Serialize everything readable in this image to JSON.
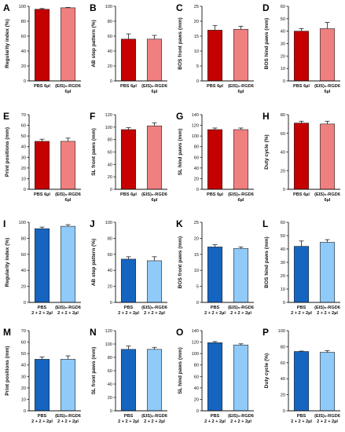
{
  "colors": {
    "red_dark": "#c40000",
    "red_light": "#f08080",
    "blue_dark": "#1565c0",
    "blue_light": "#90caf9",
    "axis": "#111111"
  },
  "chart_data": [
    {
      "panel": "A",
      "type": "bar",
      "categories": [
        [
          "PBS 6µl"
        ],
        [
          "(EIS)₅-RGD6",
          "6µl"
        ]
      ],
      "values": [
        96,
        98
      ],
      "errors": [
        1,
        0.5
      ],
      "ylabel": "Regularity index (%)",
      "ylim": [
        0,
        100
      ],
      "yticks": [
        0,
        20,
        40,
        60,
        80,
        100
      ],
      "colors": [
        "#c40000",
        "#f08080"
      ]
    },
    {
      "panel": "B",
      "type": "bar",
      "categories": [
        [
          "PBS 6µl"
        ],
        [
          "(EIS)₅-RGD6",
          "6µl"
        ]
      ],
      "values": [
        56,
        56
      ],
      "errors": [
        7,
        5
      ],
      "ylabel": "AB step pattern (%)",
      "ylim": [
        0,
        100
      ],
      "yticks": [
        0,
        20,
        40,
        60,
        80,
        100
      ],
      "colors": [
        "#c40000",
        "#f08080"
      ]
    },
    {
      "panel": "C",
      "type": "bar",
      "categories": [
        [
          "PBS 6µl"
        ],
        [
          "(EIS)₅-RGD6",
          "6µl"
        ]
      ],
      "values": [
        17,
        17.3
      ],
      "errors": [
        1.5,
        1
      ],
      "ylabel": "BOS front paws (mm)",
      "ylim": [
        0,
        25
      ],
      "yticks": [
        0,
        5,
        10,
        15,
        20,
        25
      ],
      "colors": [
        "#c40000",
        "#f08080"
      ]
    },
    {
      "panel": "D",
      "type": "bar",
      "categories": [
        [
          "PBS 6µl"
        ],
        [
          "(EIS)₅-RGD6",
          "6µl"
        ]
      ],
      "values": [
        40,
        42
      ],
      "errors": [
        2,
        5
      ],
      "ylabel": "BOS hind paws (mm)",
      "ylim": [
        0,
        60
      ],
      "yticks": [
        0,
        10,
        20,
        30,
        40,
        50,
        60
      ],
      "colors": [
        "#c40000",
        "#f08080"
      ]
    },
    {
      "panel": "E",
      "type": "bar",
      "categories": [
        [
          "PBS 6µl"
        ],
        [
          "(EIS)₅-RGD6",
          "6µl"
        ]
      ],
      "values": [
        45,
        45
      ],
      "errors": [
        2,
        3
      ],
      "ylabel": "Print positions (mm)",
      "ylim": [
        0,
        70
      ],
      "yticks": [
        0,
        10,
        20,
        30,
        40,
        50,
        60,
        70
      ],
      "colors": [
        "#c40000",
        "#f08080"
      ]
    },
    {
      "panel": "F",
      "type": "bar",
      "categories": [
        [
          "PBS 6µl"
        ],
        [
          "(EIS)₅-RGD6",
          "6µl"
        ]
      ],
      "values": [
        96,
        102
      ],
      "errors": [
        3,
        5
      ],
      "ylabel": "SL front paws (mm)",
      "ylim": [
        0,
        120
      ],
      "yticks": [
        0,
        20,
        40,
        60,
        80,
        100,
        120
      ],
      "colors": [
        "#c40000",
        "#f08080"
      ]
    },
    {
      "panel": "G",
      "type": "bar",
      "categories": [
        [
          "PBS 6µl"
        ],
        [
          "(EIS)₅-RGD6",
          "6µl"
        ]
      ],
      "values": [
        112,
        112
      ],
      "errors": [
        3,
        3
      ],
      "ylabel": "SL hind paws (mm)",
      "ylim": [
        0,
        140
      ],
      "yticks": [
        0,
        20,
        40,
        60,
        80,
        100,
        120,
        140
      ],
      "colors": [
        "#c40000",
        "#f08080"
      ]
    },
    {
      "panel": "H",
      "type": "bar",
      "categories": [
        [
          "PBS 6µl"
        ],
        [
          "(EIS)₅-RGD6",
          "6µl"
        ]
      ],
      "values": [
        71,
        70
      ],
      "errors": [
        2,
        3
      ],
      "ylabel": "Duty cycle (%)",
      "ylim": [
        0,
        80
      ],
      "yticks": [
        0,
        20,
        40,
        60,
        80
      ],
      "colors": [
        "#c40000",
        "#f08080"
      ]
    },
    {
      "panel": "I",
      "type": "bar",
      "categories": [
        [
          "PBS",
          "2 + 2 + 2µl"
        ],
        [
          "(EIS)₅-RGD6",
          "2 + 2 + 2µl"
        ]
      ],
      "values": [
        92,
        95
      ],
      "errors": [
        2,
        2
      ],
      "ylabel": "Regularity index (%)",
      "ylim": [
        0,
        100
      ],
      "yticks": [
        0,
        20,
        40,
        60,
        80,
        100
      ],
      "colors": [
        "#1565c0",
        "#90caf9"
      ]
    },
    {
      "panel": "J",
      "type": "bar",
      "categories": [
        [
          "PBS",
          "2 + 2 + 2µl"
        ],
        [
          "(EIS)₅-RGD6",
          "2 + 2 + 2µl"
        ]
      ],
      "values": [
        54,
        52
      ],
      "errors": [
        3,
        5
      ],
      "ylabel": "AB step pattern (%)",
      "ylim": [
        0,
        100
      ],
      "yticks": [
        0,
        20,
        40,
        60,
        80,
        100
      ],
      "colors": [
        "#1565c0",
        "#90caf9"
      ]
    },
    {
      "panel": "K",
      "type": "bar",
      "categories": [
        [
          "PBS",
          "2 + 2 + 2µl"
        ],
        [
          "(EIS)₅-RGD6",
          "2 + 2 + 2µl"
        ]
      ],
      "values": [
        17.3,
        16.8
      ],
      "errors": [
        0.7,
        0.5
      ],
      "ylabel": "BOS front paws (mm)",
      "ylim": [
        0,
        25
      ],
      "yticks": [
        0,
        5,
        10,
        15,
        20,
        25
      ],
      "colors": [
        "#1565c0",
        "#90caf9"
      ]
    },
    {
      "panel": "L",
      "type": "bar",
      "categories": [
        [
          "PBS",
          "2 + 2 + 2µl"
        ],
        [
          "(EIS)₅-RGD6",
          "2 + 2 + 2µl"
        ]
      ],
      "values": [
        42,
        45
      ],
      "errors": [
        4,
        2
      ],
      "ylabel": "BOS hind paws (mm)",
      "ylim": [
        0,
        60
      ],
      "yticks": [
        0,
        10,
        20,
        30,
        40,
        50,
        60
      ],
      "colors": [
        "#1565c0",
        "#90caf9"
      ]
    },
    {
      "panel": "M",
      "type": "bar",
      "categories": [
        [
          "PBS",
          "2 + 2 + 2µl"
        ],
        [
          "(EIS)₅-RGD6",
          "2 + 2 + 2µl"
        ]
      ],
      "values": [
        45,
        45
      ],
      "errors": [
        2,
        3
      ],
      "ylabel": "Print positions (mm)",
      "ylim": [
        0,
        70
      ],
      "yticks": [
        0,
        10,
        20,
        30,
        40,
        50,
        60,
        70
      ],
      "colors": [
        "#1565c0",
        "#90caf9"
      ]
    },
    {
      "panel": "N",
      "type": "bar",
      "categories": [
        [
          "PBS",
          "2 + 2 + 2µl"
        ],
        [
          "(EIS)₅-RGD6",
          "2 + 2 + 2µl"
        ]
      ],
      "values": [
        92,
        92
      ],
      "errors": [
        5,
        3
      ],
      "ylabel": "SL front paws (mm)",
      "ylim": [
        0,
        120
      ],
      "yticks": [
        0,
        20,
        40,
        60,
        80,
        100,
        120
      ],
      "colors": [
        "#1565c0",
        "#90caf9"
      ]
    },
    {
      "panel": "O",
      "type": "bar",
      "categories": [
        [
          "PBS",
          "2 + 2 + 2µl"
        ],
        [
          "(EIS)₅-RGD6",
          "2 + 2 + 2µl"
        ]
      ],
      "values": [
        119,
        115
      ],
      "errors": [
        2,
        2
      ],
      "ylabel": "SL hind paws (mm)",
      "ylim": [
        0,
        140
      ],
      "yticks": [
        0,
        20,
        40,
        60,
        80,
        100,
        120,
        140
      ],
      "colors": [
        "#1565c0",
        "#90caf9"
      ]
    },
    {
      "panel": "P",
      "type": "bar",
      "categories": [
        [
          "PBS",
          "2 + 2 + 2µl"
        ],
        [
          "(EIS)₅-RGD6",
          "2 + 2 + 2µl"
        ]
      ],
      "values": [
        74,
        73
      ],
      "errors": [
        0.5,
        2
      ],
      "ylabel": "Duty cycle (%)",
      "ylim": [
        0,
        100
      ],
      "yticks": [
        0,
        20,
        40,
        60,
        80,
        100
      ],
      "colors": [
        "#1565c0",
        "#90caf9"
      ]
    }
  ]
}
